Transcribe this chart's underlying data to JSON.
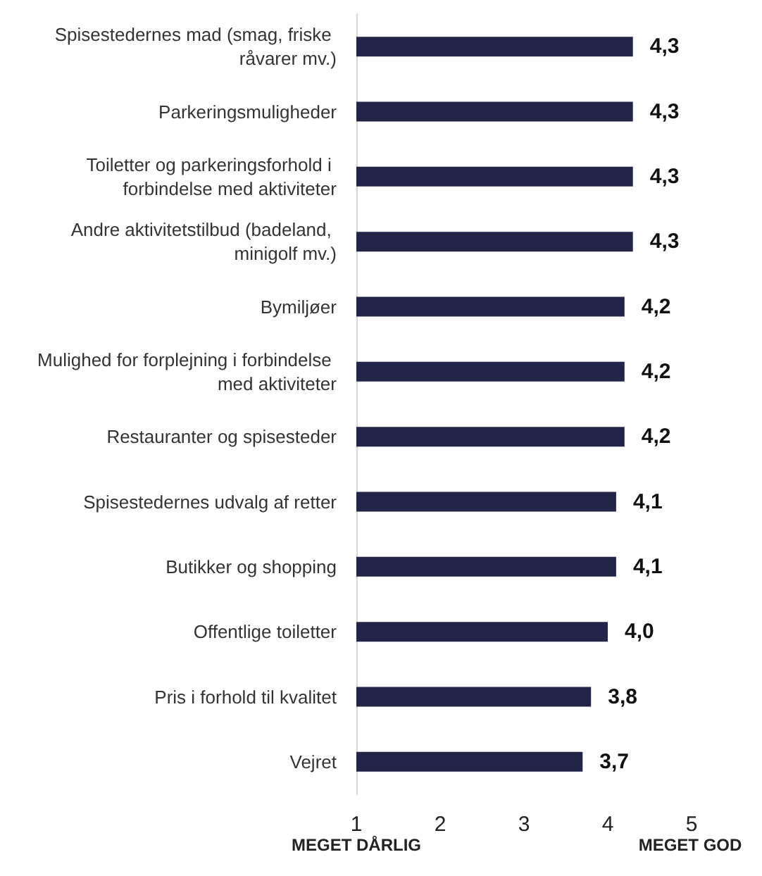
{
  "chart_data": {
    "type": "bar",
    "orientation": "horizontal",
    "categories": [
      "Spisestedernes mad (smag, friske råvarer mv.)",
      "Parkeringsmuligheder",
      "Toiletter og parkeringsforhold i forbindelse med aktiviteter",
      "Andre aktivitetstilbud (badeland, minigolf mv.)",
      "Bymiljøer",
      "Mulighed for forplejning i forbindelse med aktiviteter",
      "Restauranter og spisesteder",
      "Spisestedernes udvalg af retter",
      "Butikker og shopping",
      "Offentlige toiletter",
      "Pris i forhold til kvalitet",
      "Vejret"
    ],
    "values": [
      4.3,
      4.3,
      4.3,
      4.3,
      4.2,
      4.2,
      4.2,
      4.1,
      4.1,
      4.0,
      3.8,
      3.7
    ],
    "value_labels": [
      "4,3",
      "4,3",
      "4,3",
      "4,3",
      "4,2",
      "4,2",
      "4,2",
      "4,1",
      "4,1",
      "4,0",
      "3,8",
      "3,7"
    ],
    "color": "#222548",
    "xlim": [
      1,
      5
    ],
    "xticks": [
      1,
      2,
      3,
      4,
      5
    ],
    "grid": false,
    "annotations": [
      "MEGET DÅRLIG",
      "MEGET GOD"
    ]
  }
}
